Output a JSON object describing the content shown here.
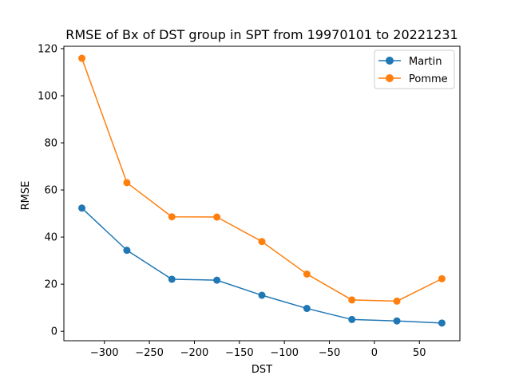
{
  "chart_data": {
    "type": "line",
    "title": "RMSE of Bx of DST group in SPT from 19970101 to 20221231",
    "xlabel": "DST",
    "ylabel": "RMSE",
    "x": [
      -325,
      -275,
      -225,
      -175,
      -125,
      -75,
      -25,
      25,
      75
    ],
    "xlim": [
      -345,
      95
    ],
    "ylim": [
      -4,
      121
    ],
    "xticks": [
      -300,
      -250,
      -200,
      -150,
      -100,
      -50,
      0,
      50
    ],
    "xtick_labels": [
      "−300",
      "−250",
      "−200",
      "−150",
      "−100",
      "−50",
      "0",
      "50"
    ],
    "yticks": [
      0,
      20,
      40,
      60,
      80,
      100,
      120
    ],
    "ytick_labels": [
      "0",
      "20",
      "40",
      "60",
      "80",
      "100",
      "120"
    ],
    "grid": false,
    "legend_position": "top-right",
    "series": [
      {
        "name": "Martin",
        "color": "#1f77b4",
        "marker": "circle",
        "values": [
          52.3,
          34.4,
          22.1,
          21.7,
          15.3,
          9.7,
          5.0,
          4.4,
          3.5
        ]
      },
      {
        "name": "Pomme",
        "color": "#ff7f0e",
        "marker": "circle",
        "values": [
          115.9,
          63.1,
          48.6,
          48.5,
          38.1,
          24.3,
          13.3,
          12.8,
          22.3
        ]
      }
    ]
  }
}
